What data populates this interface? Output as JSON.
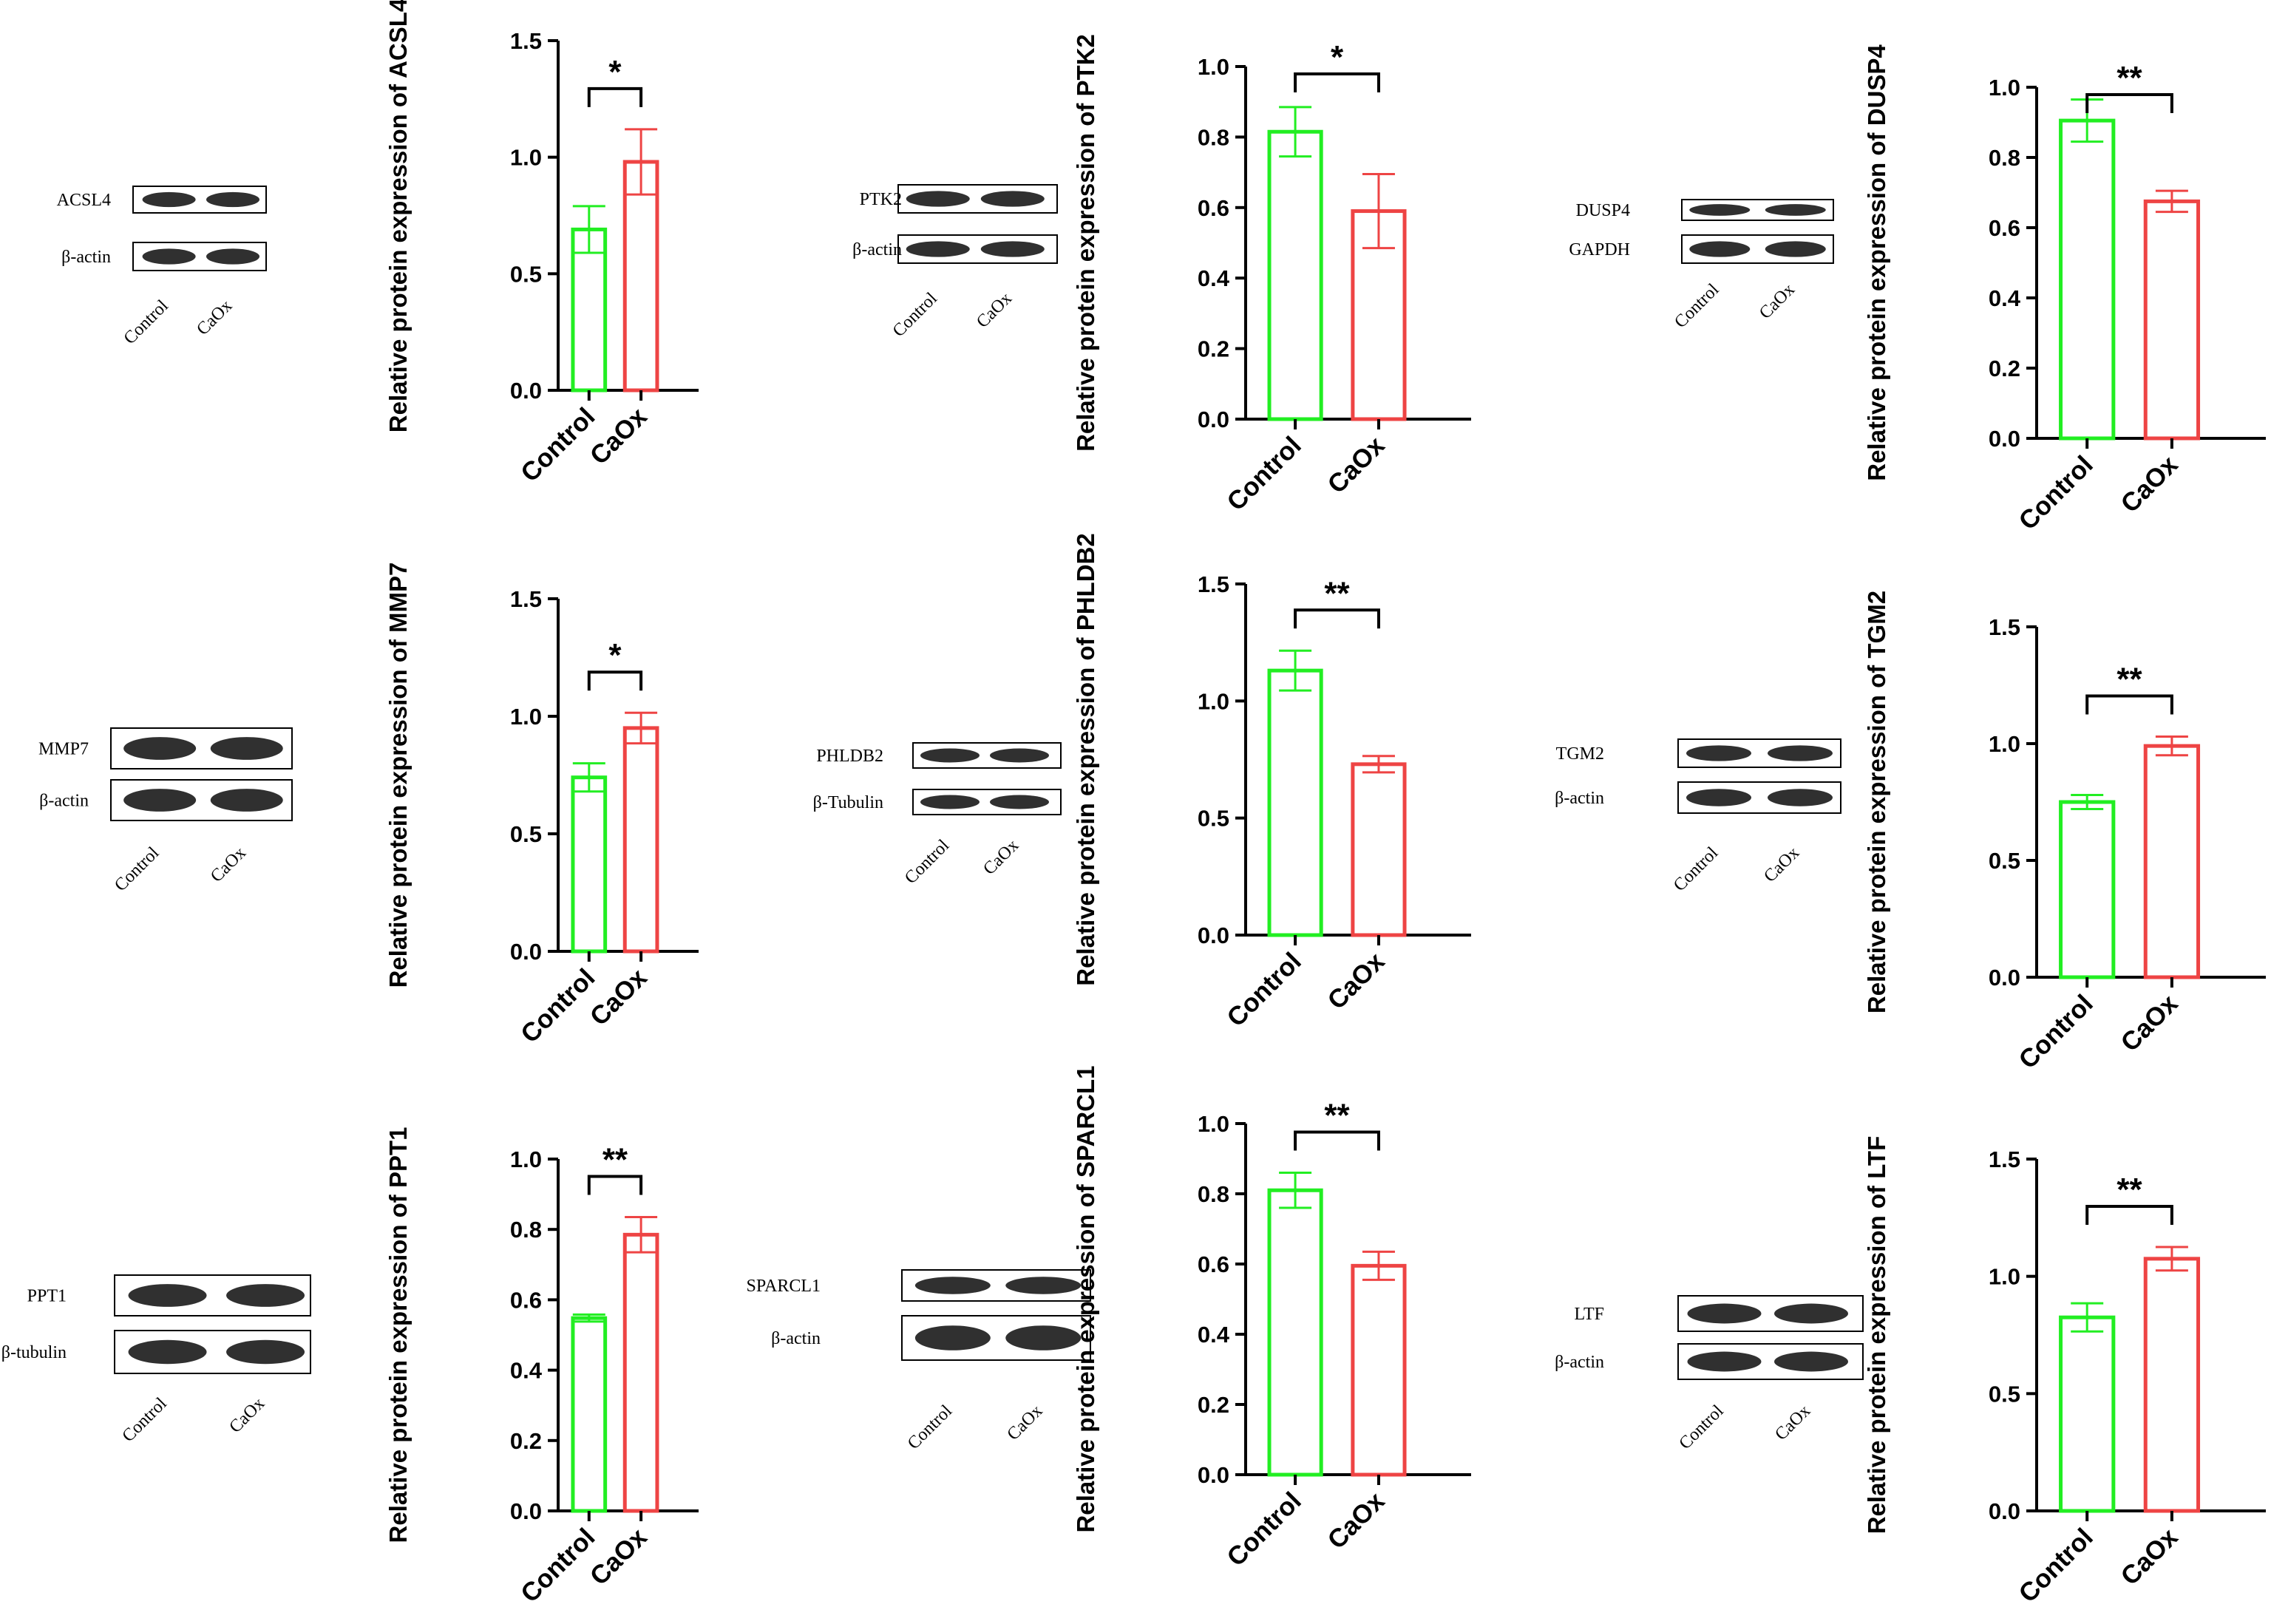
{
  "colors": {
    "control": "#22ee22",
    "caox": "#ee4444",
    "axis": "#000000"
  },
  "chart_data": [
    {
      "type": "bar",
      "protein": "ACSL4",
      "ylabel": "Relative protein expression of ACSL4",
      "categories": [
        "Control",
        "CaOx"
      ],
      "values": [
        0.69,
        0.98
      ],
      "errors": [
        0.1,
        0.14
      ],
      "ylim": [
        0,
        1.5
      ],
      "yticks": [
        "0.0",
        "0.5",
        "1.0",
        "1.5"
      ],
      "significance": "*",
      "blot": {
        "labels": [
          "ACSL4",
          "β-actin"
        ],
        "lanes": [
          "Control",
          "CaOx"
        ]
      }
    },
    {
      "type": "bar",
      "protein": "PTK2",
      "ylabel": "Relative protein expression of PTK2",
      "categories": [
        "Control",
        "CaOx"
      ],
      "values": [
        0.815,
        0.59
      ],
      "errors": [
        0.07,
        0.105
      ],
      "ylim": [
        0,
        1.0
      ],
      "yticks": [
        "0.0",
        "0.2",
        "0.4",
        "0.6",
        "0.8",
        "1.0"
      ],
      "significance": "*",
      "blot": {
        "labels": [
          "PTK2",
          "β-actin"
        ],
        "lanes": [
          "Control",
          "CaOx"
        ]
      }
    },
    {
      "type": "bar",
      "protein": "DUSP4",
      "ylabel": "Relative protein expression of DUSP4",
      "categories": [
        "Control",
        "CaOx"
      ],
      "values": [
        0.905,
        0.675
      ],
      "errors": [
        0.06,
        0.03
      ],
      "ylim": [
        0,
        1.0
      ],
      "yticks": [
        "0.0",
        "0.2",
        "0.4",
        "0.6",
        "0.8",
        "1.0"
      ],
      "significance": "**",
      "blot": {
        "labels": [
          "DUSP4",
          "GAPDH"
        ],
        "lanes": [
          "Control",
          "CaOx"
        ]
      }
    },
    {
      "type": "bar",
      "protein": "MMP7",
      "ylabel": "Relative protein expression of MMP7",
      "categories": [
        "Control",
        "CaOx"
      ],
      "values": [
        0.74,
        0.95
      ],
      "errors": [
        0.06,
        0.065
      ],
      "ylim": [
        0,
        1.5
      ],
      "yticks": [
        "0.0",
        "0.5",
        "1.0",
        "1.5"
      ],
      "significance": "*",
      "blot": {
        "labels": [
          "MMP7",
          "β-actin"
        ],
        "lanes": [
          "Control",
          "CaOx"
        ]
      }
    },
    {
      "type": "bar",
      "protein": "PHLDB2",
      "ylabel": "Relative protein expression of PHLDB2",
      "categories": [
        "Control",
        "CaOx"
      ],
      "values": [
        1.13,
        0.73
      ],
      "errors": [
        0.085,
        0.035
      ],
      "ylim": [
        0,
        1.5
      ],
      "yticks": [
        "0.0",
        "0.5",
        "1.0",
        "1.5"
      ],
      "significance": "**",
      "blot": {
        "labels": [
          "PHLDB2",
          "β-Tubulin"
        ],
        "lanes": [
          "Control",
          "CaOx"
        ]
      }
    },
    {
      "type": "bar",
      "protein": "TGM2",
      "ylabel": "Relative protein expression of TGM2",
      "categories": [
        "Control",
        "CaOx"
      ],
      "values": [
        0.75,
        0.99
      ],
      "errors": [
        0.03,
        0.04
      ],
      "ylim": [
        0,
        1.5
      ],
      "yticks": [
        "0.0",
        "0.5",
        "1.0",
        "1.5"
      ],
      "significance": "**",
      "blot": {
        "labels": [
          "TGM2",
          "β-actin"
        ],
        "lanes": [
          "Control",
          "CaOx"
        ]
      }
    },
    {
      "type": "bar",
      "protein": "PPT1",
      "ylabel": "Relative protein expression of PPT1",
      "categories": [
        "Control",
        "CaOx"
      ],
      "values": [
        0.548,
        0.785
      ],
      "errors": [
        0.01,
        0.05
      ],
      "ylim": [
        0,
        1.0
      ],
      "yticks": [
        "0.0",
        "0.2",
        "0.4",
        "0.6",
        "0.8",
        "1.0"
      ],
      "significance": "**",
      "blot": {
        "labels": [
          "PPT1",
          "β-tubulin"
        ],
        "lanes": [
          "Control",
          "CaOx"
        ]
      }
    },
    {
      "type": "bar",
      "protein": "SPARCL1",
      "ylabel": "Relative protein expression of SPARCL1",
      "categories": [
        "Control",
        "CaOx"
      ],
      "values": [
        0.81,
        0.595
      ],
      "errors": [
        0.05,
        0.04
      ],
      "ylim": [
        0,
        1.0
      ],
      "yticks": [
        "0.0",
        "0.2",
        "0.4",
        "0.6",
        "0.8",
        "1.0"
      ],
      "significance": "**",
      "blot": {
        "labels": [
          "SPARCL1",
          "β-actin"
        ],
        "lanes": [
          "Control",
          "CaOx"
        ]
      }
    },
    {
      "type": "bar",
      "protein": "LTF",
      "ylabel": "Relative protein expression of LTF",
      "categories": [
        "Control",
        "CaOx"
      ],
      "values": [
        0.825,
        1.075
      ],
      "errors": [
        0.06,
        0.05
      ],
      "ylim": [
        0,
        1.5
      ],
      "yticks": [
        "0.0",
        "0.5",
        "1.0",
        "1.5"
      ],
      "significance": "**",
      "blot": {
        "labels": [
          "LTF",
          "β-actin"
        ],
        "lanes": [
          "Control",
          "CaOx"
        ]
      }
    }
  ]
}
